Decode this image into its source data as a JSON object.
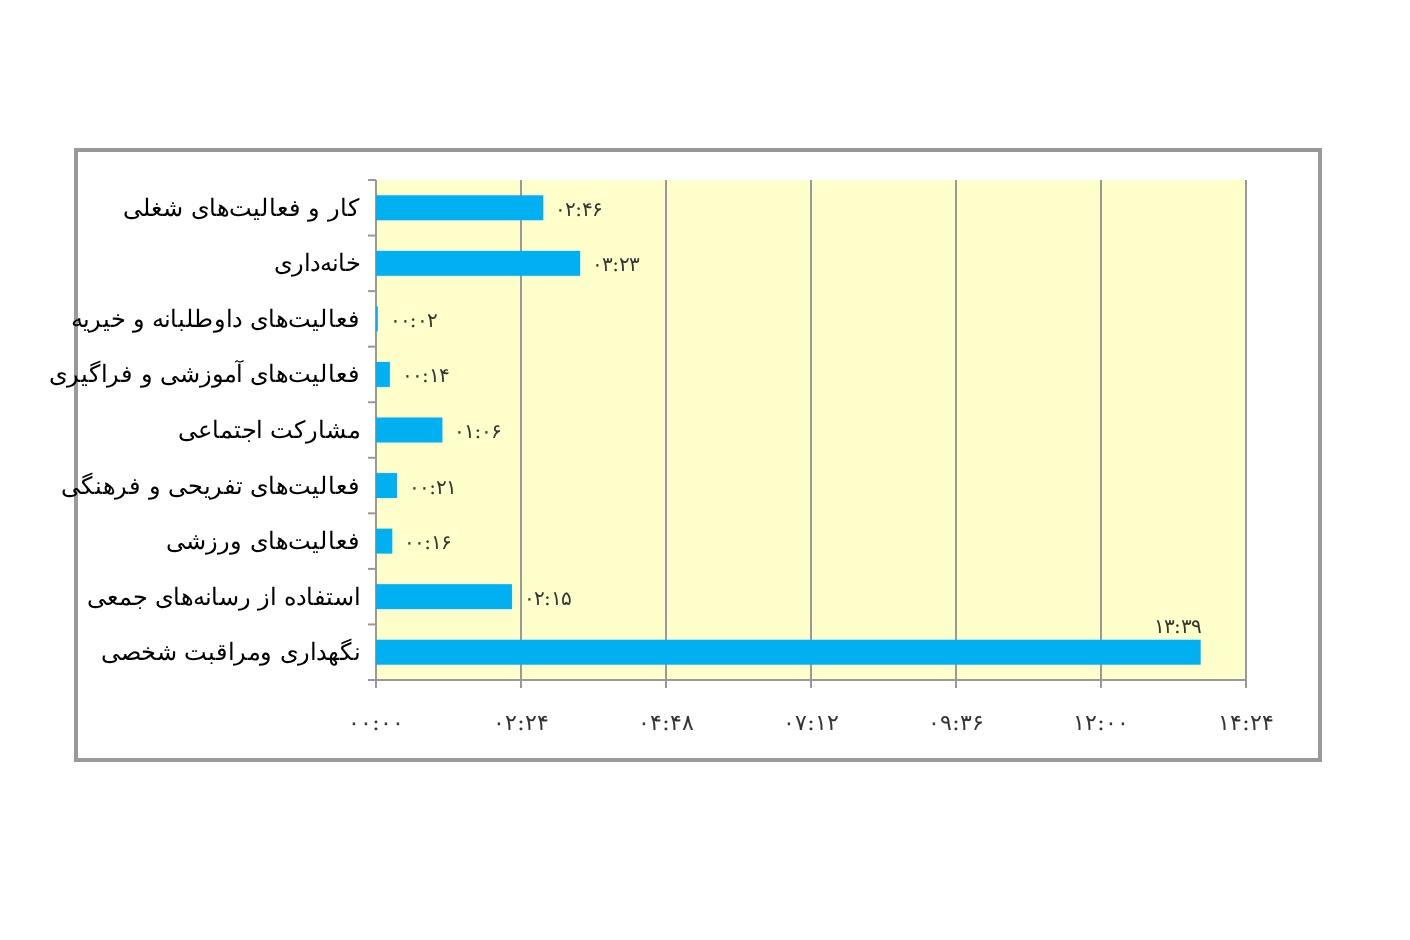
{
  "chart_data": {
    "type": "bar",
    "orientation": "horizontal",
    "categories": [
      "کار و فعالیت‌های شغلی",
      "خانه‌داری",
      "فعالیت‌های داوطلبانه و خیریه",
      "فعالیت‌های آموزشی و فراگیری",
      "مشارکت اجتماعی",
      "فعالیت‌های تفریحی و فرهنگی",
      "فعالیت‌های ورزشی",
      "استفاده از رسانه‌های جمعی",
      "نگهداری ومراقبت شخصی"
    ],
    "values": [
      2.77,
      3.38,
      0.03,
      0.23,
      1.1,
      0.35,
      0.27,
      2.25,
      13.65
    ],
    "value_labels": [
      "۰۲:۴۶",
      "۰۳:۲۳",
      "۰۰:۰۲",
      "۰۰:۱۴",
      "۰۱:۰۶",
      "۰۰:۲۱",
      "۰۰:۱۶",
      "۰۲:۱۵",
      "۱۳:۳۹"
    ],
    "color": "#00b0f0",
    "xlim": [
      0,
      14.4
    ],
    "xticks": [
      {
        "value": 0,
        "label": "۰۰:۰۰"
      },
      {
        "value": 2.4,
        "label": "۰۲:۲۴"
      },
      {
        "value": 4.8,
        "label": "۰۴:۴۸"
      },
      {
        "value": 7.2,
        "label": "۰۷:۱۲"
      },
      {
        "value": 9.6,
        "label": "۰۹:۳۶"
      },
      {
        "value": 12,
        "label": "۱۲:۰۰"
      },
      {
        "value": 14.4,
        "label": "۱۴:۲۴"
      }
    ],
    "grid": "x"
  }
}
